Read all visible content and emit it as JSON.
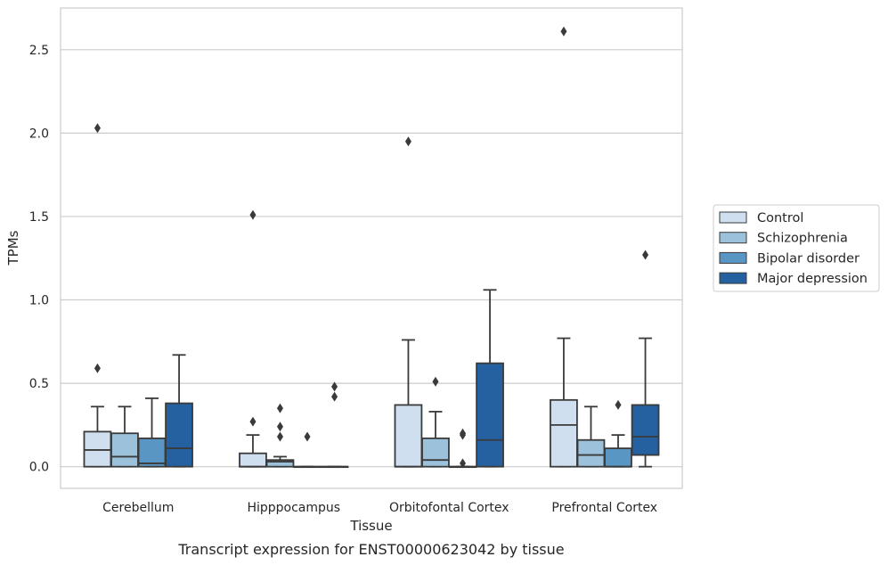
{
  "chart_data": {
    "type": "box",
    "caption": "Transcript expression for ENST00000623042 by tissue",
    "xlabel": "Tissue",
    "ylabel": "TPMs",
    "ylim": [
      -0.13,
      2.75
    ],
    "yticks": [
      0.0,
      0.5,
      1.0,
      1.5,
      2.0,
      2.5
    ],
    "ytick_labels": [
      "0.0",
      "0.5",
      "1.0",
      "1.5",
      "2.0",
      "2.5"
    ],
    "grid": "horizontal",
    "legend_position": "right",
    "categories": [
      "Cerebellum",
      "Hipppocampus",
      "Orbitofontal Cortex",
      "Prefrontal Cortex"
    ],
    "series": [
      {
        "name": "Control",
        "color": "#cfdff0",
        "boxes": [
          {
            "whislo": 0,
            "q1": 0,
            "med": 0.1,
            "q3": 0.21,
            "whishi": 0.36,
            "fliers": [
              0.59,
              2.03
            ]
          },
          {
            "whislo": 0,
            "q1": 0,
            "med": 0.0,
            "q3": 0.08,
            "whishi": 0.19,
            "fliers": [
              0.27,
              1.51
            ]
          },
          {
            "whislo": 0,
            "q1": 0,
            "med": 0.0,
            "q3": 0.37,
            "whishi": 0.76,
            "fliers": [
              1.95
            ]
          },
          {
            "whislo": 0,
            "q1": 0,
            "med": 0.25,
            "q3": 0.4,
            "whishi": 0.77,
            "fliers": [
              2.61
            ]
          }
        ]
      },
      {
        "name": "Schizophrenia",
        "color": "#9bc2da",
        "boxes": [
          {
            "whislo": 0,
            "q1": 0,
            "med": 0.06,
            "q3": 0.2,
            "whishi": 0.36,
            "fliers": []
          },
          {
            "whislo": 0,
            "q1": 0,
            "med": 0.03,
            "q3": 0.04,
            "whishi": 0.06,
            "fliers": [
              0.18,
              0.24,
              0.35
            ]
          },
          {
            "whislo": 0,
            "q1": 0,
            "med": 0.04,
            "q3": 0.17,
            "whishi": 0.33,
            "fliers": [
              0.51
            ]
          },
          {
            "whislo": 0,
            "q1": 0,
            "med": 0.07,
            "q3": 0.16,
            "whishi": 0.36,
            "fliers": []
          }
        ]
      },
      {
        "name": "Bipolar disorder",
        "color": "#5a96c3",
        "boxes": [
          {
            "whislo": 0,
            "q1": 0,
            "med": 0.02,
            "q3": 0.17,
            "whishi": 0.41,
            "fliers": []
          },
          {
            "whislo": 0,
            "q1": 0,
            "med": 0.0,
            "q3": 0.0,
            "whishi": 0.0,
            "fliers": [
              0.18
            ]
          },
          {
            "whislo": 0,
            "q1": 0,
            "med": 0.0,
            "q3": 0.0,
            "whishi": 0.0,
            "fliers": [
              0.02,
              0.19,
              0.2
            ]
          },
          {
            "whislo": 0,
            "q1": 0,
            "med": 0.0,
            "q3": 0.11,
            "whishi": 0.19,
            "fliers": [
              0.37
            ]
          }
        ]
      },
      {
        "name": "Major depression",
        "color": "#2561a0",
        "boxes": [
          {
            "whislo": 0,
            "q1": 0,
            "med": 0.11,
            "q3": 0.38,
            "whishi": 0.67,
            "fliers": []
          },
          {
            "whislo": 0,
            "q1": 0,
            "med": 0.0,
            "q3": 0.0,
            "whishi": 0.0,
            "fliers": [
              0.42,
              0.48
            ]
          },
          {
            "whislo": 0,
            "q1": 0,
            "med": 0.16,
            "q3": 0.62,
            "whishi": 1.06,
            "fliers": []
          },
          {
            "whislo": 0,
            "q1": 0.07,
            "med": 0.18,
            "q3": 0.37,
            "whishi": 0.77,
            "fliers": [
              1.27
            ]
          }
        ]
      }
    ]
  }
}
